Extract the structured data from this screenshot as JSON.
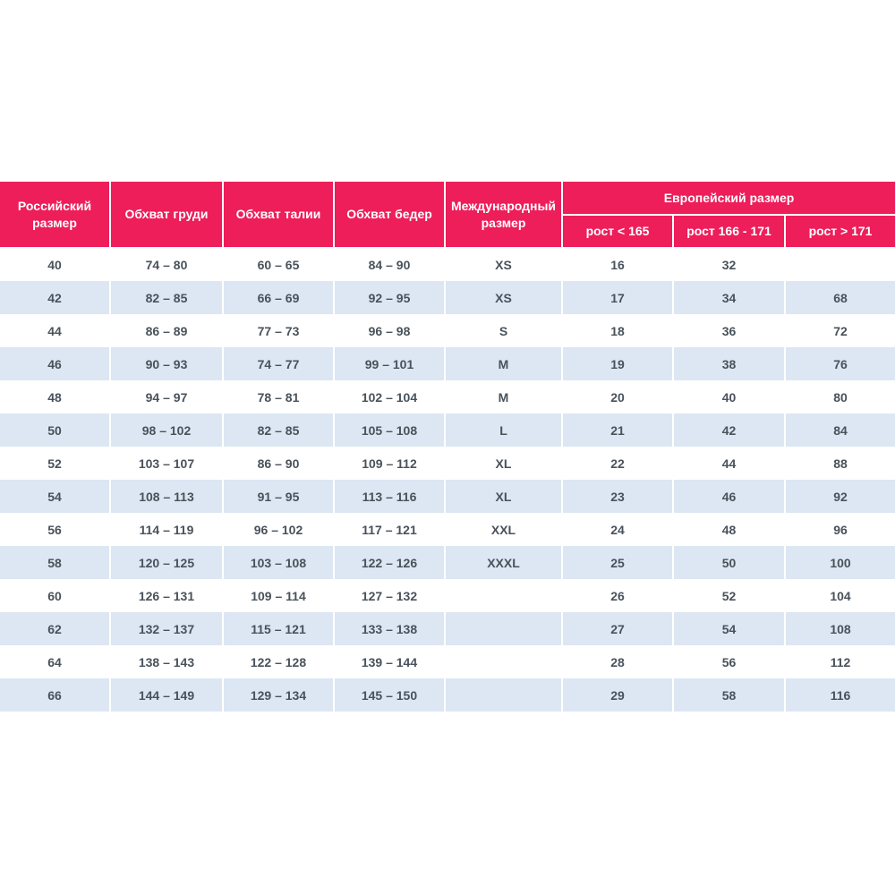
{
  "table": {
    "header": {
      "russian_size": "Российский размер",
      "chest": "Обхват груди",
      "waist": "Обхват талии",
      "hips": "Обхват бедер",
      "international_size": "Международный размер",
      "european_size": "Европейский размер",
      "height_under_165": "рост < 165",
      "height_166_171": "рост 166 - 171",
      "height_over_171": "рост > 171"
    },
    "rows": [
      [
        "40",
        "74 – 80",
        "60 – 65",
        "84 – 90",
        "XS",
        "16",
        "32",
        ""
      ],
      [
        "42",
        "82 – 85",
        "66 – 69",
        "92 – 95",
        "XS",
        "17",
        "34",
        "68"
      ],
      [
        "44",
        "86 – 89",
        "77 – 73",
        "96 – 98",
        "S",
        "18",
        "36",
        "72"
      ],
      [
        "46",
        "90 – 93",
        "74 – 77",
        "99 – 101",
        "M",
        "19",
        "38",
        "76"
      ],
      [
        "48",
        "94 – 97",
        "78 – 81",
        "102 – 104",
        "M",
        "20",
        "40",
        "80"
      ],
      [
        "50",
        "98 – 102",
        "82 – 85",
        "105 – 108",
        "L",
        "21",
        "42",
        "84"
      ],
      [
        "52",
        "103 – 107",
        "86 – 90",
        "109 – 112",
        "XL",
        "22",
        "44",
        "88"
      ],
      [
        "54",
        "108 – 113",
        "91 – 95",
        "113 – 116",
        "XL",
        "23",
        "46",
        "92"
      ],
      [
        "56",
        "114 – 119",
        "96 – 102",
        "117 – 121",
        "XXL",
        "24",
        "48",
        "96"
      ],
      [
        "58",
        "120 – 125",
        "103 – 108",
        "122 – 126",
        "XXXL",
        "25",
        "50",
        "100"
      ],
      [
        "60",
        "126 – 131",
        "109 – 114",
        "127 – 132",
        "",
        "26",
        "52",
        "104"
      ],
      [
        "62",
        "132 – 137",
        "115 – 121",
        "133 – 138",
        "",
        "27",
        "54",
        "108"
      ],
      [
        "64",
        "138 – 143",
        "122 – 128",
        "139 – 144",
        "",
        "28",
        "56",
        "112"
      ],
      [
        "66",
        "144 – 149",
        "129 – 134",
        "145 – 150",
        "",
        "29",
        "58",
        "116"
      ]
    ],
    "colors": {
      "header_bg": "#ED1E59",
      "header_text": "#FFFFFF",
      "row_alt_bg": "#DCE7F3",
      "row_text": "#49525B",
      "page_bg": "#FFFFFF"
    }
  }
}
